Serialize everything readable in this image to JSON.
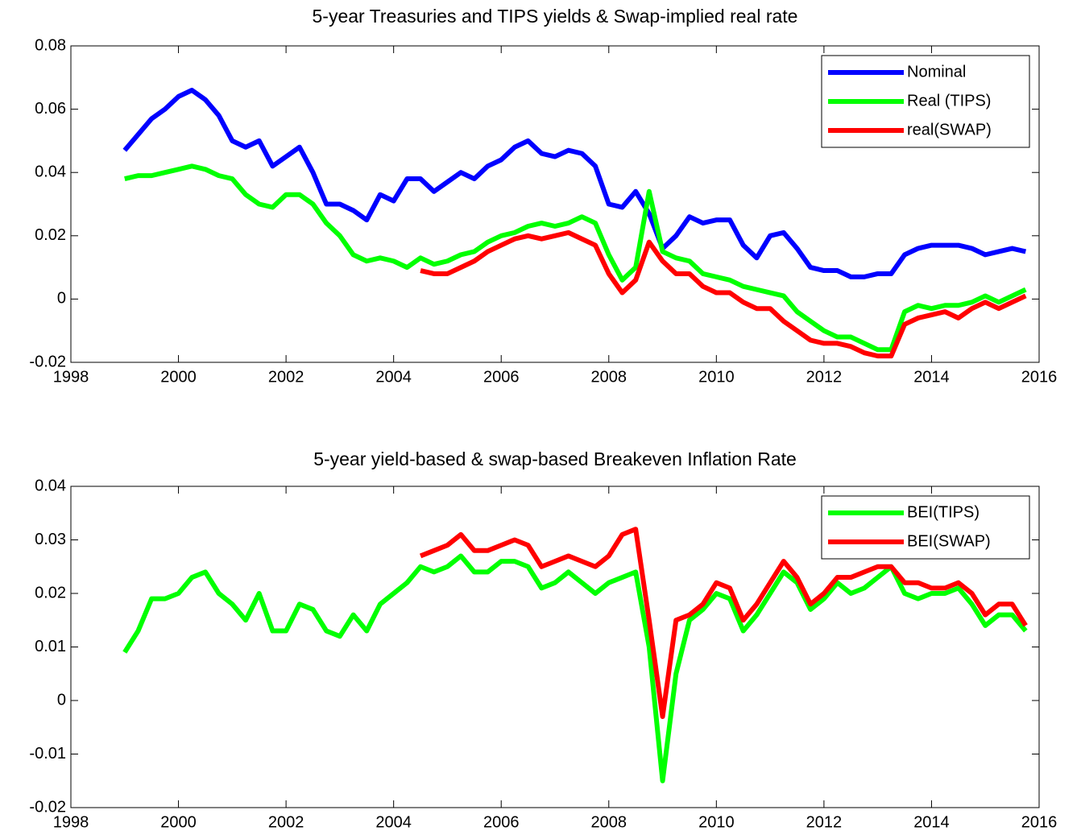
{
  "chart_data": [
    {
      "type": "line",
      "title": "5-year Treasuries and TIPS yields & Swap-implied real rate",
      "x": [
        1999,
        1999.25,
        1999.5,
        1999.75,
        2000,
        2000.25,
        2000.5,
        2000.75,
        2001,
        2001.25,
        2001.5,
        2001.75,
        2002,
        2002.25,
        2002.5,
        2002.75,
        2003,
        2003.25,
        2003.5,
        2003.75,
        2004,
        2004.25,
        2004.5,
        2004.75,
        2005,
        2005.25,
        2005.5,
        2005.75,
        2006,
        2006.25,
        2006.5,
        2006.75,
        2007,
        2007.25,
        2007.5,
        2007.75,
        2008,
        2008.25,
        2008.5,
        2008.75,
        2009,
        2009.25,
        2009.5,
        2009.75,
        2010,
        2010.25,
        2010.5,
        2010.75,
        2011,
        2011.25,
        2011.5,
        2011.75,
        2012,
        2012.25,
        2012.5,
        2012.75,
        2013,
        2013.25,
        2013.5,
        2013.75,
        2014,
        2014.25,
        2014.5,
        2014.75,
        2015,
        2015.25,
        2015.5,
        2015.75
      ],
      "series": [
        {
          "name": "Nominal",
          "color": "#0000ff",
          "values": [
            0.047,
            0.052,
            0.057,
            0.06,
            0.064,
            0.066,
            0.063,
            0.058,
            0.05,
            0.048,
            0.05,
            0.042,
            0.045,
            0.048,
            0.04,
            0.03,
            0.03,
            0.028,
            0.025,
            0.033,
            0.031,
            0.038,
            0.038,
            0.034,
            0.037,
            0.04,
            0.038,
            0.042,
            0.044,
            0.048,
            0.05,
            0.046,
            0.045,
            0.047,
            0.046,
            0.042,
            0.03,
            0.029,
            0.034,
            0.027,
            0.016,
            0.02,
            0.026,
            0.024,
            0.025,
            0.025,
            0.017,
            0.013,
            0.02,
            0.021,
            0.016,
            0.01,
            0.009,
            0.009,
            0.007,
            0.007,
            0.008,
            0.008,
            0.014,
            0.016,
            0.017,
            0.017,
            0.017,
            0.016,
            0.014,
            0.015,
            0.016,
            0.015
          ]
        },
        {
          "name": "Real (TIPS)",
          "color": "#00ff00",
          "values": [
            0.038,
            0.039,
            0.039,
            0.04,
            0.041,
            0.042,
            0.041,
            0.039,
            0.038,
            0.033,
            0.03,
            0.029,
            0.033,
            0.033,
            0.03,
            0.024,
            0.02,
            0.014,
            0.012,
            0.013,
            0.012,
            0.01,
            0.013,
            0.011,
            0.012,
            0.014,
            0.015,
            0.018,
            0.02,
            0.021,
            0.023,
            0.024,
            0.023,
            0.024,
            0.026,
            0.024,
            0.014,
            0.006,
            0.01,
            0.034,
            0.015,
            0.013,
            0.012,
            0.008,
            0.007,
            0.006,
            0.004,
            0.003,
            0.002,
            0.001,
            -0.004,
            -0.007,
            -0.01,
            -0.012,
            -0.012,
            -0.014,
            -0.016,
            -0.016,
            -0.004,
            -0.002,
            -0.003,
            -0.002,
            -0.002,
            -0.001,
            0.001,
            -0.001,
            0.001,
            0.003
          ]
        },
        {
          "name": "real(SWAP)",
          "color": "#ff0000",
          "values": [
            null,
            null,
            null,
            null,
            null,
            null,
            null,
            null,
            null,
            null,
            null,
            null,
            null,
            null,
            null,
            null,
            null,
            null,
            null,
            null,
            null,
            null,
            0.009,
            0.008,
            0.008,
            0.01,
            0.012,
            0.015,
            0.017,
            0.019,
            0.02,
            0.019,
            0.02,
            0.021,
            0.019,
            0.017,
            0.008,
            0.002,
            0.006,
            0.018,
            0.012,
            0.008,
            0.008,
            0.004,
            0.002,
            0.002,
            -0.001,
            -0.003,
            -0.003,
            -0.007,
            -0.01,
            -0.013,
            -0.014,
            -0.014,
            -0.015,
            -0.017,
            -0.018,
            -0.018,
            -0.008,
            -0.006,
            -0.005,
            -0.004,
            -0.006,
            -0.003,
            -0.001,
            -0.003,
            -0.001,
            0.001
          ]
        }
      ],
      "xlim": [
        1998,
        2016
      ],
      "xticks": [
        1998,
        2000,
        2002,
        2004,
        2006,
        2008,
        2010,
        2012,
        2014,
        2016
      ],
      "ylim": [
        -0.02,
        0.08
      ],
      "yticks": [
        -0.02,
        0,
        0.02,
        0.04,
        0.06,
        0.08
      ],
      "legend": "northeast",
      "grid": false
    },
    {
      "type": "line",
      "title": "5-year yield-based & swap-based Breakeven Inflation Rate",
      "x": [
        1999,
        1999.25,
        1999.5,
        1999.75,
        2000,
        2000.25,
        2000.5,
        2000.75,
        2001,
        2001.25,
        2001.5,
        2001.75,
        2002,
        2002.25,
        2002.5,
        2002.75,
        2003,
        2003.25,
        2003.5,
        2003.75,
        2004,
        2004.25,
        2004.5,
        2004.75,
        2005,
        2005.25,
        2005.5,
        2005.75,
        2006,
        2006.25,
        2006.5,
        2006.75,
        2007,
        2007.25,
        2007.5,
        2007.75,
        2008,
        2008.25,
        2008.5,
        2008.75,
        2009,
        2009.25,
        2009.5,
        2009.75,
        2010,
        2010.25,
        2010.5,
        2010.75,
        2011,
        2011.25,
        2011.5,
        2011.75,
        2012,
        2012.25,
        2012.5,
        2012.75,
        2013,
        2013.25,
        2013.5,
        2013.75,
        2014,
        2014.25,
        2014.5,
        2014.75,
        2015,
        2015.25,
        2015.5,
        2015.75
      ],
      "series": [
        {
          "name": "BEI(TIPS)",
          "color": "#00ff00",
          "values": [
            0.009,
            0.013,
            0.019,
            0.019,
            0.02,
            0.023,
            0.024,
            0.02,
            0.018,
            0.015,
            0.02,
            0.013,
            0.013,
            0.018,
            0.017,
            0.013,
            0.012,
            0.016,
            0.013,
            0.018,
            0.02,
            0.022,
            0.025,
            0.024,
            0.025,
            0.027,
            0.024,
            0.024,
            0.026,
            0.026,
            0.025,
            0.021,
            0.022,
            0.024,
            0.022,
            0.02,
            0.022,
            0.023,
            0.024,
            0.01,
            -0.015,
            0.005,
            0.015,
            0.017,
            0.02,
            0.019,
            0.013,
            0.016,
            0.02,
            0.024,
            0.022,
            0.017,
            0.019,
            0.022,
            0.02,
            0.021,
            0.023,
            0.025,
            0.02,
            0.019,
            0.02,
            0.02,
            0.021,
            0.018,
            0.014,
            0.016,
            0.016,
            0.013
          ]
        },
        {
          "name": "BEI(SWAP)",
          "color": "#ff0000",
          "values": [
            null,
            null,
            null,
            null,
            null,
            null,
            null,
            null,
            null,
            null,
            null,
            null,
            null,
            null,
            null,
            null,
            null,
            null,
            null,
            null,
            null,
            null,
            0.027,
            0.028,
            0.029,
            0.031,
            0.028,
            0.028,
            0.029,
            0.03,
            0.029,
            0.025,
            0.026,
            0.027,
            0.026,
            0.025,
            0.027,
            0.031,
            0.032,
            0.015,
            -0.003,
            0.015,
            0.016,
            0.018,
            0.022,
            0.021,
            0.015,
            0.018,
            0.022,
            0.026,
            0.023,
            0.018,
            0.02,
            0.023,
            0.023,
            0.024,
            0.025,
            0.025,
            0.022,
            0.022,
            0.021,
            0.021,
            0.022,
            0.02,
            0.016,
            0.018,
            0.018,
            0.014
          ]
        }
      ],
      "xlim": [
        1998,
        2016
      ],
      "xticks": [
        1998,
        2000,
        2002,
        2004,
        2006,
        2008,
        2010,
        2012,
        2014,
        2016
      ],
      "ylim": [
        -0.02,
        0.04
      ],
      "yticks": [
        -0.02,
        -0.01,
        0,
        0.01,
        0.02,
        0.03,
        0.04
      ],
      "legend": "northeast",
      "grid": false
    }
  ]
}
